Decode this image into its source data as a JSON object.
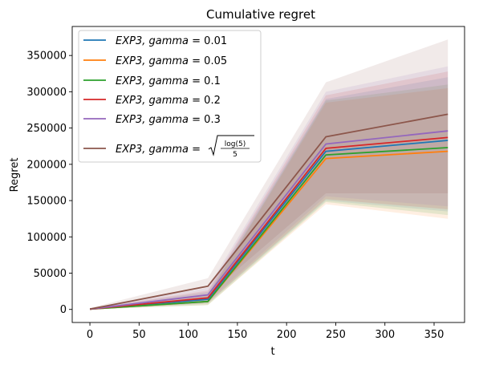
{
  "chart_data": {
    "type": "line",
    "title": "Cumulative regret",
    "xlabel": "t",
    "ylabel": "Regret",
    "xlim": [
      -18,
      381
    ],
    "ylim": [
      -18000,
      390000
    ],
    "xticks": [
      0,
      50,
      100,
      150,
      200,
      250,
      300,
      350
    ],
    "yticks": [
      0,
      50000,
      100000,
      150000,
      200000,
      250000,
      300000,
      350000
    ],
    "legend_position": "upper-left",
    "grid": false,
    "x": [
      0,
      120,
      240,
      364
    ],
    "series": [
      {
        "name": "EXP3, gamma = 0.01",
        "legend_name": "EXP3,  gamma",
        "legend_value": "0.01",
        "color": "#1f77b4",
        "values": [
          500,
          14000,
          218000,
          233000
        ],
        "lower": [
          0,
          8000,
          150000,
          135000
        ],
        "upper": [
          1500,
          24000,
          290000,
          320000
        ]
      },
      {
        "name": "EXP3, gamma = 0.05",
        "legend_name": "EXP3,  gamma",
        "legend_value": "0.05",
        "color": "#ff7f0e",
        "values": [
          500,
          11000,
          208000,
          218000
        ],
        "lower": [
          0,
          6000,
          145000,
          125000
        ],
        "upper": [
          1500,
          19000,
          285000,
          305000
        ]
      },
      {
        "name": "EXP3, gamma = 0.1",
        "legend_name": "EXP3,  gamma",
        "legend_value": "0.1",
        "color": "#2ca02c",
        "values": [
          500,
          11000,
          213000,
          223000
        ],
        "lower": [
          0,
          6000,
          148000,
          130000
        ],
        "upper": [
          1500,
          20000,
          288000,
          310000
        ]
      },
      {
        "name": "EXP3, gamma = 0.2",
        "legend_name": "EXP3,  gamma",
        "legend_value": "0.2",
        "color": "#d62728",
        "values": [
          500,
          16000,
          222000,
          237000
        ],
        "lower": [
          0,
          9000,
          152000,
          138000
        ],
        "upper": [
          1500,
          26000,
          295000,
          328000
        ]
      },
      {
        "name": "EXP3, gamma = 0.3",
        "legend_name": "EXP3,  gamma",
        "legend_value": "0.3",
        "color": "#9467bd",
        "values": [
          500,
          20000,
          228000,
          246000
        ],
        "lower": [
          0,
          11000,
          156000,
          142000
        ],
        "upper": [
          1500,
          30000,
          300000,
          335000
        ]
      },
      {
        "name": "EXP3, gamma = sqrt(log(5)/5)",
        "legend_name": "EXP3,  gamma",
        "legend_value_num": "log(5)",
        "legend_value_den": "5",
        "color": "#8c564b",
        "values": [
          500,
          32000,
          238000,
          269000
        ],
        "lower": [
          0,
          20000,
          160000,
          160000
        ],
        "upper": [
          2000,
          43000,
          313000,
          372000
        ]
      }
    ]
  }
}
